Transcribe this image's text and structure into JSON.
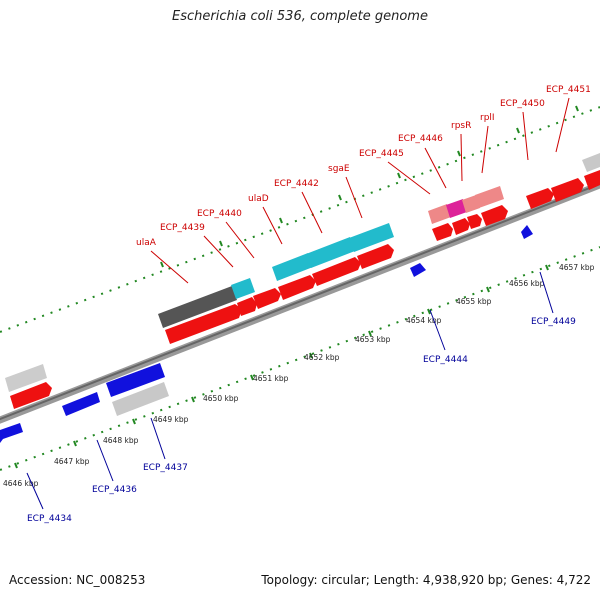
{
  "title": "Escherichia coli 536, complete genome",
  "footer": {
    "accession": "Accession: NC_008253",
    "summary": "Topology: circular; Length: 4,938,920 bp; Genes: 4,722"
  },
  "kbp_labels": [
    "4646 kbp",
    "4647 kbp",
    "4648 kbp",
    "4649 kbp",
    "4650 kbp",
    "4651 kbp",
    "4652 kbp",
    "4653 kbp",
    "4654 kbp",
    "4655 kbp",
    "4656 kbp",
    "4657 kbp"
  ],
  "forward_gene_labels": [
    "ulaA",
    "ECP_4439",
    "ECP_4440",
    "ulaD",
    "ECP_4442",
    "sgaE",
    "ECP_4445",
    "ECP_4446",
    "rpsR",
    "rplI",
    "ECP_4450",
    "ECP_4451"
  ],
  "reverse_gene_labels": [
    "ECP_4434",
    "ECP_4436",
    "ECP_4437",
    "ECP_4444",
    "ECP_4449"
  ],
  "colors": {
    "cds_forward": "#ee1111",
    "cds_reverse": "#1111dd",
    "gene_teal": "#22bbcc",
    "gene_dark": "#555555",
    "gene_light": "#cccccc",
    "gene_pink": "#ee8888",
    "gene_magenta": "#dd2299",
    "tick": "#228822",
    "backbone": "#888888"
  }
}
